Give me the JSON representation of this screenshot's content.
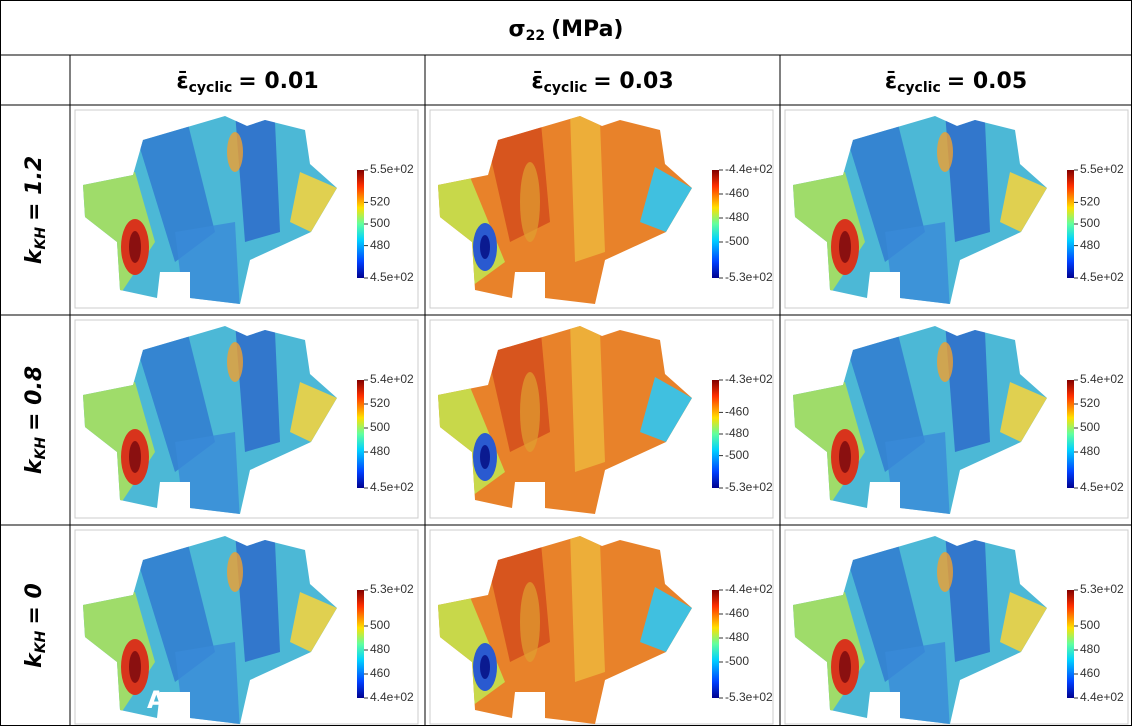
{
  "title": {
    "base": "σ",
    "sub": "22",
    "rest": "(MPa)"
  },
  "columns": [
    {
      "base": "ε̄",
      "sub": "cyclic",
      "rest": "= 0.01"
    },
    {
      "base": "ε̄",
      "sub": "cyclic",
      "rest": "= 0.03"
    },
    {
      "base": "ε̄",
      "sub": "cyclic",
      "rest": "= 0.05"
    }
  ],
  "rows": [
    {
      "base": "k",
      "sub": "KH",
      "rest": "= 1.2"
    },
    {
      "base": "k",
      "sub": "KH",
      "rest": "= 0.8"
    },
    {
      "base": "k",
      "sub": "KH",
      "rest": "= 0"
    }
  ],
  "cells": [
    [
      {
        "colorbar": [
          "5.5e+02",
          "520",
          "500",
          "480",
          "4.5e+02"
        ]
      },
      {
        "colorbar": [
          "-4.4e+02",
          "-460",
          "-480",
          "-500",
          "-5.3e+02"
        ]
      },
      {
        "colorbar": [
          "5.5e+02",
          "520",
          "500",
          "480",
          "4.5e+02"
        ]
      }
    ],
    [
      {
        "colorbar": [
          "5.4e+02",
          "520",
          "500",
          "480",
          "4.5e+02"
        ]
      },
      {
        "colorbar": [
          "-4.3e+02",
          "-460",
          "-480",
          "-500",
          "-5.3e+02"
        ]
      },
      {
        "colorbar": [
          "5.4e+02",
          "520",
          "500",
          "480",
          "4.5e+02"
        ]
      }
    ],
    [
      {
        "colorbar": [
          "5.3e+02",
          "500",
          "480",
          "460",
          "4.4e+02"
        ],
        "annotation": "A"
      },
      {
        "colorbar": [
          "-4.4e+02",
          "-460",
          "-480",
          "-500",
          "-5.3e+02"
        ]
      },
      {
        "colorbar": [
          "5.3e+02",
          "500",
          "480",
          "460",
          "4.4e+02"
        ]
      }
    ]
  ]
}
